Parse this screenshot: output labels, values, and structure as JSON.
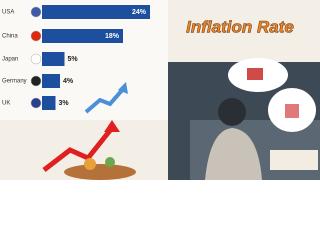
{
  "chart_data": {
    "type": "bar",
    "orientation": "horizontal",
    "title": "Inflation Rate",
    "categories": [
      "USA",
      "China",
      "Japan",
      "Germany",
      "UK"
    ],
    "values": [
      24,
      18,
      5,
      4,
      3
    ],
    "value_labels": [
      "24%",
      "18%",
      "5%",
      "4%",
      "3%"
    ],
    "color": "#1d4f9e"
  }
}
